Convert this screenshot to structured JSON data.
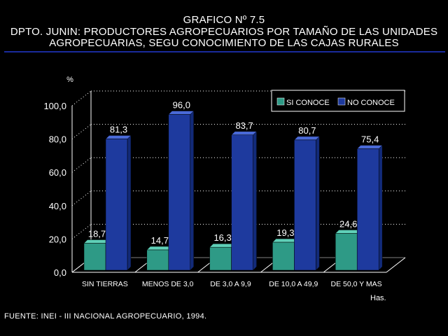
{
  "title_lines": [
    "GRAFICO Nº 7.5",
    "DPTO. JUNIN: PRODUCTORES AGROPECUARIOS POR TAMAÑO DE LAS UNIDADES",
    "AGROPECUARIAS, SEGU CONOCIMIENTO DE LAS CAJAS RURALES"
  ],
  "source": "FUENTE: INEI - III NACIONAL AGROPECUARIO, 1994.",
  "colors": {
    "si": "#2e9a86",
    "no": "#1e3a9e",
    "rule": "#1a2a9c"
  },
  "chart_data": {
    "type": "bar",
    "ylabel": "%",
    "xlabel": "Has.",
    "ylim": [
      0,
      100
    ],
    "yticks": [
      "0,0",
      "20,0",
      "40,0",
      "60,0",
      "80,0",
      "100,0"
    ],
    "categories": [
      "SIN TIERRAS",
      "MENOS DE 3,0",
      "DE 3,0 A 9,9",
      "DE 10,0 A 49,9",
      "DE 50,0 Y MAS"
    ],
    "series": [
      {
        "name": "SI CONOCE",
        "values": [
          18.7,
          14.7,
          16.3,
          19.3,
          24.6
        ],
        "labels": [
          "18,7",
          "14,7",
          "16,3",
          "19,3",
          "24,6"
        ]
      },
      {
        "name": "NO CONOCE",
        "values": [
          81.3,
          96.0,
          83.7,
          80.7,
          75.4
        ],
        "labels": [
          "81,3",
          "96,0",
          "83,7",
          "80,7",
          "75,4"
        ]
      }
    ],
    "legend_position": "top-right",
    "grid": true
  }
}
